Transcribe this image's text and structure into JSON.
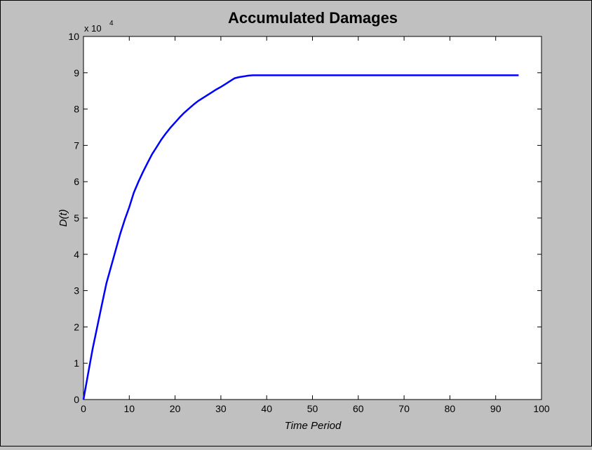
{
  "figure": {
    "background_color": "#c0c0c0",
    "axes_background": "#ffffff",
    "border_color": "#000000"
  },
  "chart_data": {
    "type": "line",
    "title": "Accumulated Damages",
    "xlabel": "Time Period",
    "ylabel": "D(t)",
    "y_multiplier": {
      "base": "x 10",
      "exponent": "4"
    },
    "xlim": [
      0,
      100
    ],
    "ylim": [
      0,
      100000
    ],
    "x_ticks": [
      0,
      10,
      20,
      30,
      40,
      50,
      60,
      70,
      80,
      90,
      100
    ],
    "x_tick_labels": [
      "0",
      "10",
      "20",
      "30",
      "40",
      "50",
      "60",
      "70",
      "80",
      "90",
      "100"
    ],
    "y_ticks": [
      0,
      10000,
      20000,
      30000,
      40000,
      50000,
      60000,
      70000,
      80000,
      90000,
      100000
    ],
    "y_tick_labels": [
      "0",
      "1",
      "2",
      "3",
      "4",
      "5",
      "6",
      "7",
      "8",
      "9",
      "10"
    ],
    "grid": false,
    "series": [
      {
        "color": "#0000ff",
        "x": [
          0,
          1,
          2,
          3,
          4,
          5,
          6,
          7,
          8,
          9,
          10,
          11,
          12,
          13,
          14,
          15,
          16,
          17,
          18,
          19,
          20,
          21,
          22,
          23,
          24,
          25,
          26,
          27,
          28,
          29,
          30,
          31,
          32,
          33,
          34,
          35,
          36,
          37,
          38,
          40,
          50,
          60,
          70,
          80,
          90,
          95
        ],
        "y": [
          0,
          7000,
          14000,
          20000,
          26000,
          32000,
          36500,
          41000,
          45500,
          49500,
          53000,
          57000,
          60000,
          62700,
          65200,
          67600,
          69600,
          71600,
          73300,
          74900,
          76300,
          77700,
          79000,
          80100,
          81200,
          82200,
          83000,
          83800,
          84600,
          85400,
          86100,
          86900,
          87700,
          88500,
          88800,
          89000,
          89200,
          89300,
          89300,
          89300,
          89300,
          89300,
          89300,
          89300,
          89300,
          89300
        ]
      }
    ]
  }
}
